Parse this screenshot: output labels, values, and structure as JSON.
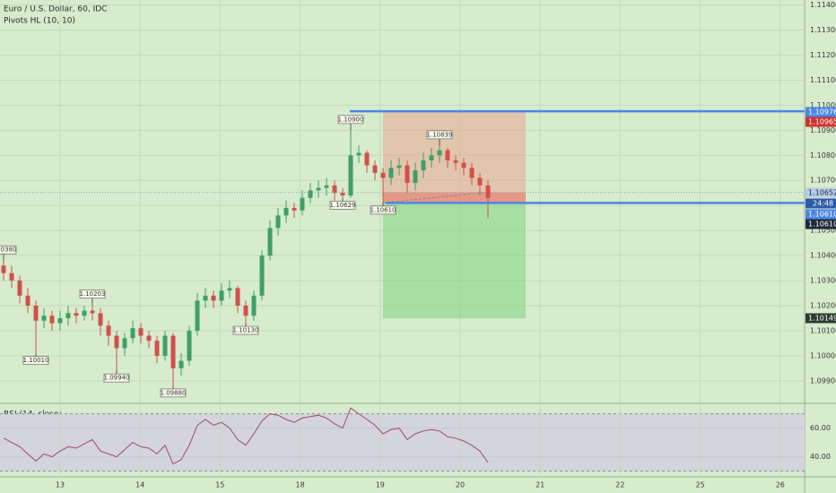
{
  "chart_data": {
    "type": "candlestick",
    "title": "Euro / U.S. Dollar, 60, IDC",
    "indicator": "Pivots HL (10, 10)",
    "x_labels": [
      "13",
      "14",
      "15",
      "18",
      "19",
      "20",
      "21",
      "22",
      "25",
      "26"
    ],
    "open": [
      1.1036,
      1.1033,
      1.103,
      1.1024,
      1.102,
      1.1014,
      1.1016,
      1.1013,
      1.1015,
      1.1017,
      1.1016,
      1.1018,
      1.1017,
      1.1012,
      1.1008,
      1.1003,
      1.1007,
      1.1011,
      1.1008,
      1.1006,
      1.1,
      1.1008,
      1.0995,
      1.0998,
      1.101,
      1.1022,
      1.1024,
      1.1022,
      1.1026,
      1.1027,
      1.102,
      1.1016,
      1.1024,
      1.104,
      1.1051,
      1.1056,
      1.1059,
      1.1058,
      1.1063,
      1.1066,
      1.1067,
      1.1068,
      1.1065,
      1.1064,
      1.108,
      1.1081,
      1.1076,
      1.1073,
      1.1071,
      1.1075,
      1.1076,
      1.1069,
      1.1074,
      1.1078,
      1.108,
      1.1082,
      1.1078,
      1.1077,
      1.1075,
      1.1071,
      1.1068
    ],
    "high": [
      1.1038,
      1.1036,
      1.1032,
      1.1027,
      1.1022,
      1.1019,
      1.1018,
      1.1018,
      1.102,
      1.1019,
      1.102,
      1.10203,
      1.1019,
      1.1014,
      1.101,
      1.1009,
      1.1014,
      1.1013,
      1.101,
      1.1008,
      1.101,
      1.1009,
      1.1001,
      1.1012,
      1.1025,
      1.1027,
      1.1026,
      1.1029,
      1.103,
      1.1028,
      1.1022,
      1.1026,
      1.1042,
      1.1054,
      1.1059,
      1.1062,
      1.1061,
      1.1066,
      1.1069,
      1.107,
      1.1071,
      1.107,
      1.1067,
      1.109,
      1.1084,
      1.1082,
      1.1078,
      1.1075,
      1.1078,
      1.1079,
      1.1078,
      1.1077,
      1.1081,
      1.1083,
      1.10839,
      1.1083,
      1.108,
      1.1079,
      1.1077,
      1.1073,
      1.107
    ],
    "low": [
      1.103,
      1.1027,
      1.1021,
      1.1017,
      1.1001,
      1.1011,
      1.101,
      1.101,
      1.1012,
      1.1013,
      1.1014,
      1.1014,
      1.1008,
      1.1004,
      1.0994,
      1.1,
      1.1005,
      1.1005,
      1.1003,
      1.0997,
      1.0998,
      1.0988,
      1.0992,
      1.0996,
      1.1008,
      1.1019,
      1.1019,
      1.102,
      1.1023,
      1.1017,
      1.1013,
      1.1014,
      1.1022,
      1.1038,
      1.1048,
      1.1053,
      1.1055,
      1.1056,
      1.1061,
      1.1063,
      1.1064,
      1.1062,
      1.10629,
      1.1063,
      1.1077,
      1.1073,
      1.107,
      1.1061,
      1.1068,
      1.1072,
      1.1065,
      1.1066,
      1.1071,
      1.1075,
      1.1077,
      1.1075,
      1.1074,
      1.1072,
      1.1068,
      1.1064,
      1.1055
    ],
    "close": [
      1.1033,
      1.103,
      1.1024,
      1.102,
      1.1014,
      1.1016,
      1.1013,
      1.1015,
      1.1017,
      1.1016,
      1.1018,
      1.1017,
      1.1012,
      1.1008,
      1.1003,
      1.1007,
      1.1011,
      1.1008,
      1.1006,
      1.1,
      1.1008,
      1.0995,
      1.0998,
      1.101,
      1.1022,
      1.1024,
      1.1022,
      1.1026,
      1.1027,
      1.102,
      1.1016,
      1.1024,
      1.104,
      1.1051,
      1.1056,
      1.1059,
      1.1058,
      1.1063,
      1.1066,
      1.1067,
      1.1068,
      1.1065,
      1.1064,
      1.108,
      1.1081,
      1.1076,
      1.1073,
      1.1071,
      1.1075,
      1.1076,
      1.1069,
      1.1074,
      1.1078,
      1.108,
      1.1082,
      1.1078,
      1.1077,
      1.1075,
      1.1071,
      1.1068,
      1.1063
    ],
    "up_color": "#3f9f68",
    "down_color": "#d2504a",
    "ylim": [
      1.0981,
      1.1142
    ],
    "yticks": [
      {
        "value": 1.099,
        "label": "1.09900"
      },
      {
        "value": 1.1,
        "label": "1.10000"
      },
      {
        "value": 1.101,
        "label": "1.10100"
      },
      {
        "value": 1.102,
        "label": "1.10200"
      },
      {
        "value": 1.103,
        "label": "1.10300"
      },
      {
        "value": 1.104,
        "label": "1.10400"
      },
      {
        "value": 1.105,
        "label": "1.10500"
      },
      {
        "value": 1.106,
        "label": "1.10600"
      },
      {
        "value": 1.107,
        "label": "1.10700"
      },
      {
        "value": 1.108,
        "label": "1.10800"
      },
      {
        "value": 1.109,
        "label": "1.10900"
      },
      {
        "value": 1.11,
        "label": "1.11000"
      },
      {
        "value": 1.111,
        "label": "1.11100"
      },
      {
        "value": 1.112,
        "label": "1.11200"
      },
      {
        "value": 1.113,
        "label": "1.11300"
      },
      {
        "value": 1.114,
        "label": "1.11400"
      }
    ],
    "grid": true,
    "pivots": [
      {
        "value": 1.1038,
        "label": "1.10380"
      },
      {
        "value": 1.1001,
        "label": "1.10010"
      },
      {
        "value": 1.10203,
        "label": "1.10203"
      },
      {
        "value": 1.0994,
        "label": "1.09940"
      },
      {
        "value": 1.0988,
        "label": "1.09880"
      },
      {
        "value": 1.1013,
        "label": "1.10130"
      },
      {
        "value": 1.10629,
        "label": "1.10629"
      },
      {
        "value": 1.109,
        "label": "1.10900"
      },
      {
        "value": 1.1061,
        "label": "1.10610"
      },
      {
        "value": 1.10839,
        "label": "1.10839"
      }
    ],
    "position": {
      "stop": 1.10976,
      "current": 1.10652,
      "entry": 1.1061,
      "target": 1.10149
    },
    "price_labels": [
      {
        "value": 1.10976,
        "label": "1.10976",
        "color": "#4a86e8"
      },
      {
        "value": 1.10965,
        "label": "1.10965",
        "color": "#d0312d"
      },
      {
        "value": 1.10652,
        "label": "1.10652",
        "color": "#b9cbe9"
      },
      {
        "value": 1.1061,
        "label": "1.10610",
        "color": "#4a86e8"
      },
      {
        "value": 1.1061,
        "label": "1.10610",
        "color": "#1f2a36"
      },
      {
        "value": 1.10149,
        "label": "1.10149",
        "color": "#2d3b2d"
      }
    ],
    "countdown": {
      "label": "24:48",
      "color": "#2e5aa8"
    },
    "rsi": {
      "title": "RSI (14, close)",
      "color": "#a04a6e",
      "values": [
        53,
        50,
        47,
        42,
        37,
        42,
        40,
        44,
        47,
        46,
        49,
        52,
        44,
        42,
        40,
        45,
        50,
        47,
        46,
        42,
        48,
        35,
        38,
        48,
        62,
        66,
        62,
        64,
        60,
        52,
        48,
        56,
        65,
        70,
        69,
        66,
        64,
        67,
        68,
        69,
        67,
        63,
        60,
        74,
        70,
        66,
        62,
        56,
        59,
        60,
        52,
        56,
        58,
        59,
        58,
        54,
        53,
        51,
        48,
        44,
        36
      ],
      "ylim": [
        26,
        76
      ],
      "yticks": [
        {
          "value": 40,
          "label": "40.00"
        },
        {
          "value": 60,
          "label": "60.00"
        }
      ],
      "band": [
        30,
        70
      ]
    }
  }
}
